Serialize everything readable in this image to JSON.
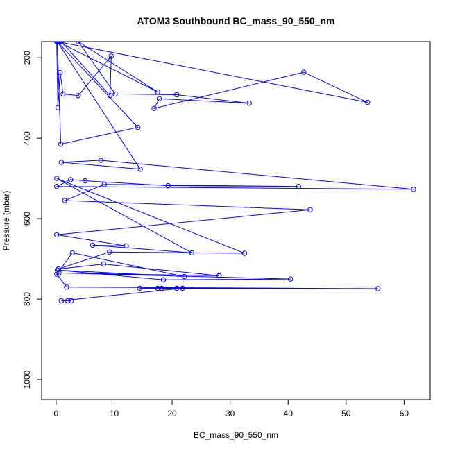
{
  "chart_data": {
    "type": "line",
    "title": "ATOM3 Southbound BC_mass_90_550_nm",
    "xlabel": "BC_mass_90_550_nm",
    "ylabel": "Pressure (mbar)",
    "xlim": [
      -2.5,
      64.5
    ],
    "ylim": [
      1050,
      160
    ],
    "y_reversed": true,
    "x_ticks": [
      0,
      10,
      20,
      30,
      40,
      50,
      60
    ],
    "y_ticks": [
      200,
      400,
      600,
      800,
      1000
    ],
    "line_color": "#0000ff",
    "marker": "open-circle",
    "grid": false,
    "x": [
      0.1,
      0.3,
      0.7,
      1.2,
      3.8,
      9.5,
      9.3,
      0.9,
      0.6,
      0.3,
      17.5,
      3.8,
      10.2,
      20.8,
      33.3,
      17.8,
      16.9,
      42.7,
      53.7,
      0.2,
      14.1,
      0.8,
      0.2,
      14.5,
      0.9,
      7.7,
      61.6,
      0.1,
      2.5,
      5.0,
      19.3,
      41.8,
      8.3,
      1.5,
      43.8,
      0.1,
      12.1,
      6.3,
      23.4,
      0.1,
      32.5,
      9.2,
      0.4,
      8.2,
      28.1,
      0.5,
      40.4,
      18.5,
      0.2,
      22.1,
      2.8,
      0.1,
      1.8,
      55.5,
      14.4,
      17.5,
      18.2,
      20.8,
      21.8,
      0.9,
      2.0,
      2.6
    ],
    "y": [
      160,
      324,
      237,
      290,
      294,
      196,
      294,
      160,
      160,
      160,
      285,
      160,
      290,
      292,
      313,
      302,
      326,
      236,
      311,
      160,
      373,
      415,
      160,
      477,
      460,
      455,
      527,
      520,
      503,
      506,
      518,
      520,
      515,
      555,
      578,
      640,
      668,
      666,
      685,
      500,
      686,
      683,
      725,
      713,
      742,
      735,
      750,
      752,
      728,
      744,
      685,
      738,
      770,
      774,
      773,
      773,
      773,
      773,
      773,
      804,
      804,
      804
    ]
  }
}
